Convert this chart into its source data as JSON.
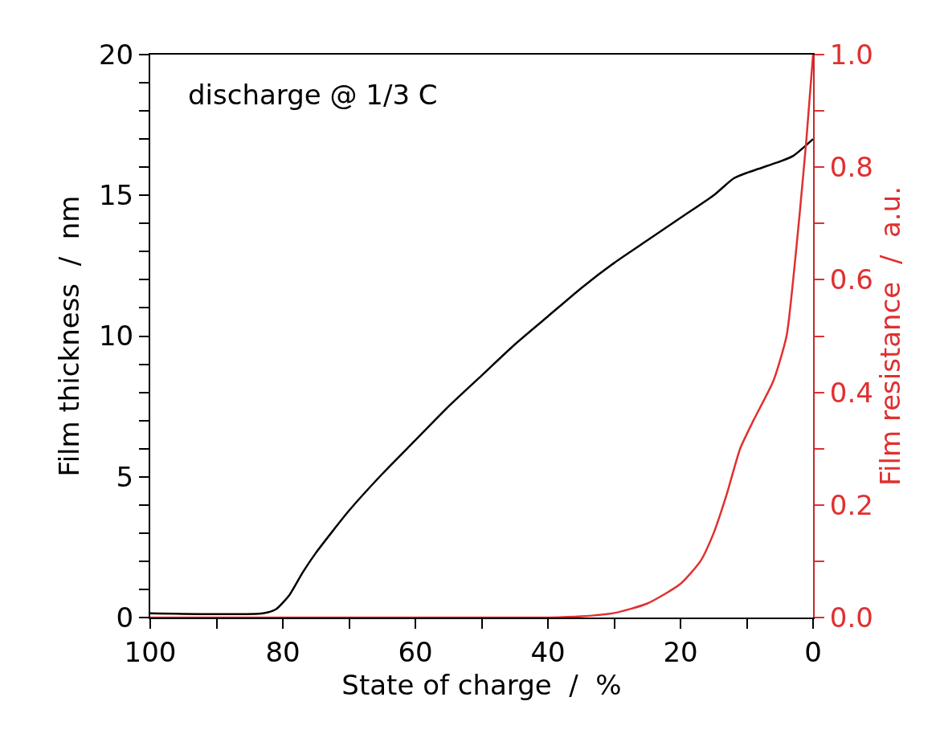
{
  "chart_data": {
    "type": "line",
    "xlabel": "State of charge  /  %",
    "ylabel": "Film thickness  /  nm",
    "y2label": "Film resistance  /  a.u.",
    "annotations": [
      "discharge @ 1/3 C"
    ],
    "xlim": [
      100,
      0
    ],
    "xticks": [
      100,
      {
        "value": 90,
        "label": null
      },
      80,
      {
        "value": 70,
        "label": null
      },
      60,
      {
        "value": 50,
        "label": null
      },
      40,
      {
        "value": 30,
        "label": null
      },
      20,
      {
        "value": 10,
        "label": null
      },
      0
    ],
    "ylim": [
      0,
      20
    ],
    "yticks": [
      0,
      {
        "value": 1,
        "label": null
      },
      {
        "value": 2,
        "label": null
      },
      {
        "value": 3,
        "label": null
      },
      {
        "value": 4,
        "label": null
      },
      5,
      {
        "value": 6,
        "label": null
      },
      {
        "value": 7,
        "label": null
      },
      {
        "value": 8,
        "label": null
      },
      {
        "value": 9,
        "label": null
      },
      10,
      {
        "value": 11,
        "label": null
      },
      {
        "value": 12,
        "label": null
      },
      {
        "value": 13,
        "label": null
      },
      {
        "value": 14,
        "label": null
      },
      15,
      {
        "value": 16,
        "label": null
      },
      {
        "value": 17,
        "label": null
      },
      {
        "value": 18,
        "label": null
      },
      {
        "value": 19,
        "label": null
      },
      20
    ],
    "y2lim": [
      0,
      1
    ],
    "y2ticks": [
      {
        "value": 0,
        "label": "0.0"
      },
      {
        "value": 0.1,
        "label": null
      },
      0.2,
      {
        "value": 0.3,
        "label": null
      },
      0.4,
      {
        "value": 0.5,
        "label": null
      },
      0.6,
      {
        "value": 0.7,
        "label": null
      },
      0.8,
      {
        "value": 0.9,
        "label": null
      },
      {
        "value": 1,
        "label": "1.0"
      }
    ],
    "marker": "none",
    "line_style": "solid",
    "series": [
      {
        "color": "#000000",
        "x": [
          100,
          90,
          83,
          81,
          79,
          77,
          75,
          70,
          65,
          60,
          55,
          50,
          45,
          40,
          35,
          30,
          25,
          20,
          15,
          12,
          10,
          5,
          3,
          0
        ],
        "values": [
          0.15,
          0.12,
          0.15,
          0.3,
          0.8,
          1.6,
          2.3,
          3.8,
          5.1,
          6.3,
          7.5,
          8.6,
          9.7,
          10.7,
          11.7,
          12.6,
          13.4,
          14.2,
          15.0,
          15.6,
          15.8,
          16.2,
          16.4,
          17.0
        ]
      },
      {
        "color": "#e03030",
        "axis": "y2",
        "x": [
          100,
          40,
          35,
          30,
          25,
          20,
          17,
          15,
          13,
          11,
          9,
          6,
          4,
          3,
          2,
          1,
          0
        ],
        "values": [
          0,
          0,
          0.002,
          0.008,
          0.025,
          0.06,
          0.1,
          0.15,
          0.22,
          0.3,
          0.35,
          0.42,
          0.5,
          0.6,
          0.72,
          0.85,
          1.0
        ]
      }
    ]
  }
}
